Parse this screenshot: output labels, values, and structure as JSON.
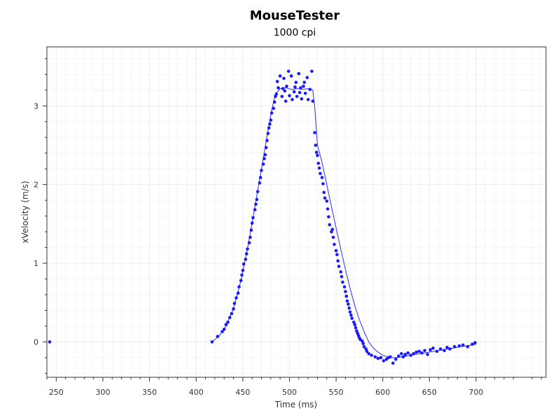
{
  "chart_data": {
    "type": "scatter",
    "title": "MouseTester",
    "subtitle": "1000 cpi",
    "xlabel": "Time (ms)",
    "ylabel": "xVelocity (m/s)",
    "xlim": [
      240,
      775
    ],
    "ylim": [
      -0.45,
      3.75
    ],
    "xticks": [
      250,
      300,
      350,
      400,
      450,
      500,
      550,
      600,
      650,
      700
    ],
    "yticks": [
      0,
      1,
      2,
      3
    ],
    "grid": true,
    "colors": {
      "series": "#1a1aff",
      "line": "#2a2aff"
    },
    "series": [
      {
        "kind": "points",
        "x": [
          243,
          417,
          423,
          428,
          430,
          432,
          434,
          436,
          438,
          440,
          441,
          443,
          445,
          446,
          448,
          449,
          450,
          451,
          453,
          454,
          455,
          457,
          458,
          459,
          460,
          461,
          463,
          464,
          465,
          466,
          468,
          469,
          470,
          472,
          473,
          474,
          475,
          476,
          477,
          478,
          479,
          480,
          481,
          483,
          484,
          485,
          486,
          487,
          488,
          490,
          492,
          493,
          494,
          495,
          496,
          497,
          499,
          500,
          502,
          503,
          505,
          506,
          507,
          508,
          510,
          511,
          512,
          513,
          515,
          516,
          517,
          519,
          520,
          522,
          524,
          525,
          527,
          528,
          529,
          530,
          531,
          532,
          533,
          535,
          536,
          537,
          538,
          540,
          541,
          542,
          543,
          545,
          546,
          547,
          548,
          550,
          551,
          552,
          553,
          555,
          556,
          557,
          559,
          560,
          561,
          562,
          563,
          564,
          565,
          566,
          567,
          569,
          570,
          571,
          572,
          573,
          574,
          575,
          576,
          578,
          579,
          580,
          582,
          583,
          585,
          588,
          592,
          595,
          598,
          601,
          604,
          606,
          608,
          611,
          614,
          617,
          620,
          622,
          624,
          627,
          630,
          633,
          636,
          639,
          642,
          645,
          648,
          651,
          654,
          658,
          662,
          666,
          669,
          672,
          677,
          682,
          686,
          691,
          696,
          699
        ],
        "y": [
          0,
          0,
          0.07,
          0.13,
          0.16,
          0.22,
          0.25,
          0.31,
          0.36,
          0.42,
          0.49,
          0.56,
          0.62,
          0.7,
          0.78,
          0.85,
          0.91,
          0.99,
          1.05,
          1.12,
          1.18,
          1.26,
          1.33,
          1.42,
          1.51,
          1.58,
          1.68,
          1.75,
          1.81,
          1.91,
          2.02,
          2.09,
          2.18,
          2.26,
          2.33,
          2.38,
          2.47,
          2.56,
          2.65,
          2.72,
          2.77,
          2.82,
          2.91,
          2.97,
          3.05,
          3.12,
          3.15,
          3.31,
          3.23,
          3.38,
          3.12,
          3.22,
          3.35,
          3.19,
          3.06,
          3.25,
          3.44,
          3.13,
          3.38,
          3.08,
          3.18,
          3.24,
          3.3,
          3.12,
          3.41,
          3.17,
          3.23,
          3.09,
          3.25,
          3.3,
          3.16,
          3.36,
          3.08,
          3.21,
          3.44,
          3.06,
          2.66,
          2.5,
          2.41,
          2.37,
          2.27,
          2.21,
          2.14,
          2.09,
          2.01,
          1.9,
          1.83,
          1.79,
          1.69,
          1.59,
          1.49,
          1.4,
          1.43,
          1.33,
          1.24,
          1.16,
          1.11,
          1.03,
          0.96,
          0.89,
          0.83,
          0.76,
          0.7,
          0.64,
          0.58,
          0.52,
          0.48,
          0.43,
          0.38,
          0.34,
          0.3,
          0.25,
          0.22,
          0.18,
          0.14,
          0.11,
          0.08,
          0.05,
          0.03,
          0.01,
          -0.02,
          -0.06,
          -0.09,
          -0.12,
          -0.15,
          -0.17,
          -0.19,
          -0.21,
          -0.2,
          -0.24,
          -0.22,
          -0.2,
          -0.19,
          -0.27,
          -0.22,
          -0.18,
          -0.15,
          -0.19,
          -0.16,
          -0.14,
          -0.17,
          -0.15,
          -0.13,
          -0.12,
          -0.14,
          -0.11,
          -0.16,
          -0.1,
          -0.08,
          -0.12,
          -0.09,
          -0.11,
          -0.07,
          -0.09,
          -0.06,
          -0.05,
          -0.04,
          -0.06,
          -0.03,
          -0.01
        ]
      },
      {
        "kind": "line",
        "x": [
          417,
          425,
          432,
          440,
          448,
          456,
          463,
          470,
          476,
          481,
          485,
          490,
          496,
          502,
          508,
          514,
          520,
          525,
          527,
          530,
          535,
          540,
          545,
          550,
          555,
          560,
          565,
          570,
          575,
          580,
          585,
          590,
          595,
          600,
          605,
          610,
          615,
          620,
          625,
          630,
          640,
          650,
          660,
          670,
          680,
          690,
          700
        ],
        "y": [
          0,
          0.08,
          0.2,
          0.42,
          0.78,
          1.25,
          1.72,
          2.2,
          2.62,
          2.95,
          3.15,
          3.22,
          3.23,
          3.21,
          3.22,
          3.21,
          3.22,
          3.2,
          3.0,
          2.5,
          2.28,
          2.0,
          1.72,
          1.45,
          1.18,
          0.92,
          0.68,
          0.46,
          0.28,
          0.13,
          0.0,
          -0.08,
          -0.13,
          -0.17,
          -0.19,
          -0.2,
          -0.2,
          -0.19,
          -0.18,
          -0.17,
          -0.15,
          -0.13,
          -0.11,
          -0.09,
          -0.07,
          -0.05,
          -0.03
        ]
      }
    ]
  }
}
